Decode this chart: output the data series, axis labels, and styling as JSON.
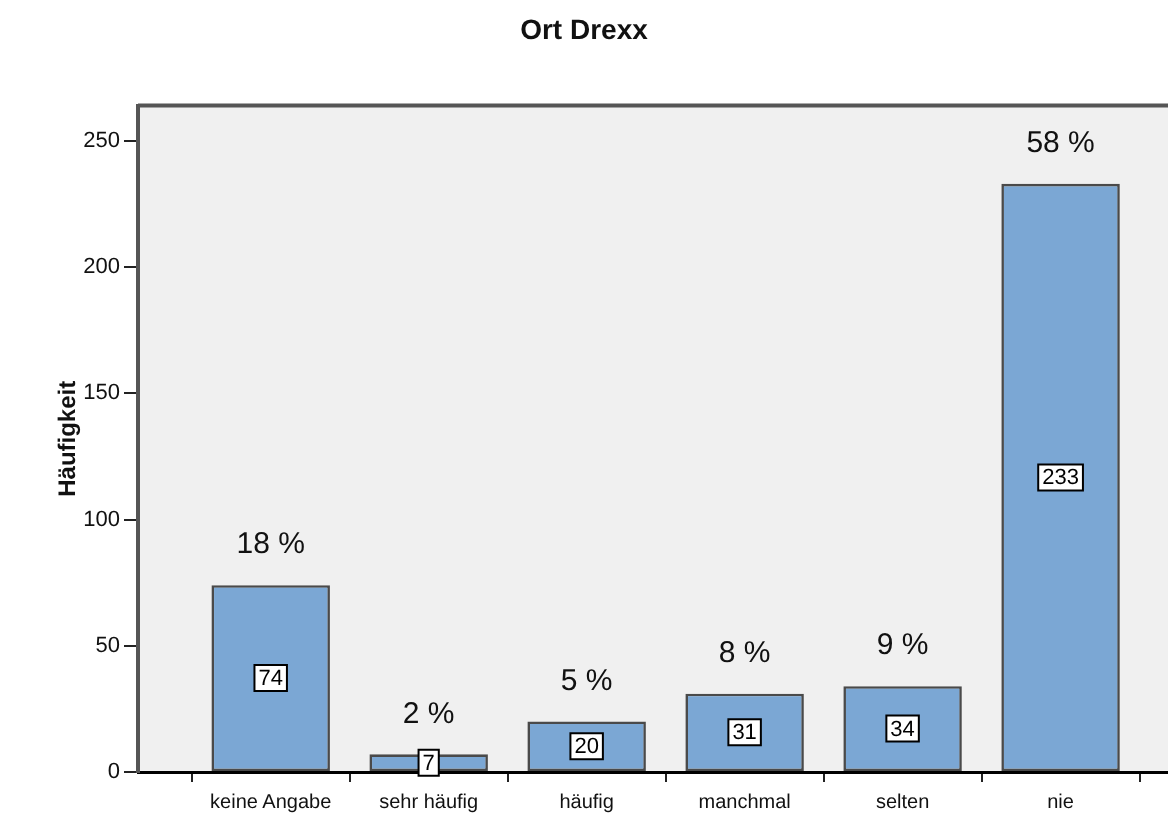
{
  "chart_data": {
    "type": "bar",
    "title": "Ort Drexx",
    "ylabel": "Häufigkeit",
    "categories": [
      "keine Angabe",
      "sehr häufig",
      "häufig",
      "manchmal",
      "selten",
      "nie"
    ],
    "values": [
      74,
      7,
      20,
      31,
      34,
      233
    ],
    "color": "#7ba7d4",
    "data_labels": true,
    "annotations": [
      {
        "text": "18 %",
        "x": "keine Angabe",
        "y": 74
      },
      {
        "text": "2 %",
        "x": "sehr häufig",
        "y": 7
      },
      {
        "text": "5 %",
        "x": "häufig",
        "y": 20
      },
      {
        "text": "8 %",
        "x": "manchmal",
        "y": 31
      },
      {
        "text": "9 %",
        "x": "selten",
        "y": 34
      },
      {
        "text": "58 %",
        "x": "nie",
        "y": 233
      }
    ],
    "ylim": [
      0,
      264
    ],
    "yticks": [
      0,
      50,
      100,
      150,
      200,
      250
    ]
  }
}
